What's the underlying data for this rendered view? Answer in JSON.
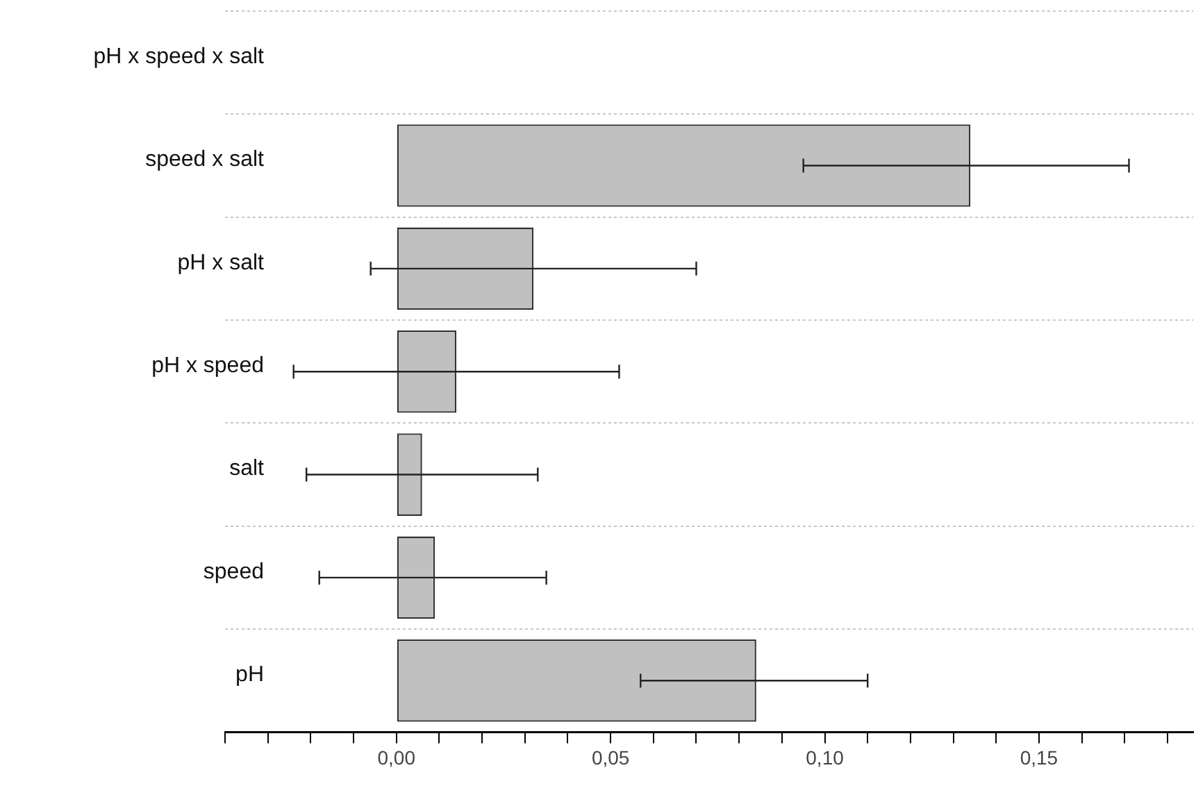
{
  "chart_data": {
    "type": "bar",
    "orientation": "horizontal",
    "categories": [
      "pH x speed x salt",
      "speed x salt",
      "pH x salt",
      "pH x speed",
      "salt",
      "speed",
      "pH"
    ],
    "values": [
      0,
      0.134,
      0.032,
      0.014,
      0.006,
      0.009,
      0.084
    ],
    "errors": [
      null,
      [
        0.095,
        0.171
      ],
      [
        -0.006,
        0.07
      ],
      [
        -0.024,
        0.052
      ],
      [
        -0.021,
        0.033
      ],
      [
        -0.018,
        0.035
      ],
      [
        0.057,
        0.11
      ]
    ],
    "color": "#c0c0c0",
    "xlim": [
      -0.04,
      0.186
    ],
    "xticks": [
      {
        "value": -0.04,
        "label": null
      },
      {
        "value": -0.03,
        "label": null
      },
      {
        "value": -0.02,
        "label": null
      },
      {
        "value": -0.01,
        "label": null
      },
      {
        "value": 0,
        "label": "0,00"
      },
      {
        "value": 0.01,
        "label": null
      },
      {
        "value": 0.02,
        "label": null
      },
      {
        "value": 0.03,
        "label": null
      },
      {
        "value": 0.04,
        "label": null
      },
      {
        "value": 0.05,
        "label": "0,05"
      },
      {
        "value": 0.06,
        "label": null
      },
      {
        "value": 0.07,
        "label": null
      },
      {
        "value": 0.08,
        "label": null
      },
      {
        "value": 0.09,
        "label": null
      },
      {
        "value": 0.1,
        "label": "0,10"
      },
      {
        "value": 0.11,
        "label": null
      },
      {
        "value": 0.12,
        "label": null
      },
      {
        "value": 0.13,
        "label": null
      },
      {
        "value": 0.14,
        "label": null
      },
      {
        "value": 0.15,
        "label": "0,15"
      },
      {
        "value": 0.16,
        "label": null
      },
      {
        "value": 0.17,
        "label": null
      },
      {
        "value": 0.18,
        "label": null
      }
    ],
    "grid": "y",
    "legend": false
  }
}
